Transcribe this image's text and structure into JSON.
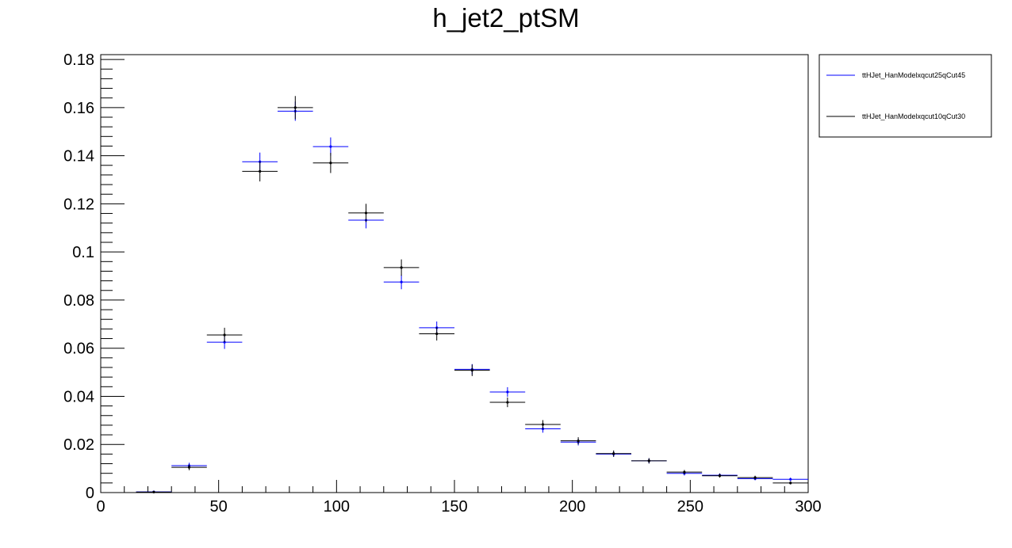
{
  "chart_data": {
    "type": "scatter",
    "title": "h_jet2_ptSM",
    "xlabel": "",
    "ylabel": "",
    "xlim": [
      0,
      300
    ],
    "ylim": [
      0,
      0.182
    ],
    "bin_width": 15,
    "x_ticks": [
      0,
      50,
      100,
      150,
      200,
      250,
      300
    ],
    "y_ticks": [
      0,
      0.02,
      0.04,
      0.06,
      0.08,
      0.1,
      0.12,
      0.14,
      0.16,
      0.18
    ],
    "x_tick_labels": [
      "0",
      "50",
      "100",
      "150",
      "200",
      "250",
      "300"
    ],
    "y_tick_labels": [
      "0",
      "0.02",
      "0.04",
      "0.06",
      "0.08",
      "0.1",
      "0.12",
      "0.14",
      "0.16",
      "0.18"
    ],
    "grid": false,
    "legend_position": "top-right, outside plot",
    "x": [
      22.5,
      37.5,
      52.5,
      67.5,
      82.5,
      97.5,
      112.5,
      127.5,
      142.5,
      157.5,
      172.5,
      187.5,
      202.5,
      217.5,
      232.5,
      247.5,
      262.5,
      277.5,
      292.5
    ],
    "series": [
      {
        "name": "ttHJet_HanModelxqcut25qCut45",
        "color": "#0000ff",
        "values": [
          0.0003,
          0.0112,
          0.0625,
          0.1375,
          0.1585,
          0.1438,
          0.1132,
          0.0875,
          0.0685,
          0.0512,
          0.0418,
          0.0265,
          0.021,
          0.016,
          0.0132,
          0.008,
          0.0072,
          0.0058,
          0.0055
        ],
        "errors": [
          0.0002,
          0.0012,
          0.0028,
          0.0038,
          0.004,
          0.0038,
          0.0034,
          0.003,
          0.0026,
          0.0022,
          0.002,
          0.0016,
          0.0014,
          0.0012,
          0.0011,
          0.0009,
          0.0008,
          0.0007,
          0.0007
        ]
      },
      {
        "name": "ttHJet_HanModelxqcut10qCut30",
        "color": "#000000",
        "values": [
          0.0002,
          0.0105,
          0.0655,
          0.1335,
          0.16,
          0.137,
          0.1162,
          0.0935,
          0.066,
          0.0508,
          0.0375,
          0.0283,
          0.0215,
          0.0162,
          0.0132,
          0.0085,
          0.007,
          0.0062,
          0.004
        ],
        "errors": [
          0.0002,
          0.0012,
          0.003,
          0.0042,
          0.0048,
          0.0042,
          0.0038,
          0.0034,
          0.0028,
          0.0024,
          0.002,
          0.0018,
          0.0015,
          0.0013,
          0.0011,
          0.0009,
          0.0008,
          0.0008,
          0.0006
        ]
      }
    ]
  }
}
